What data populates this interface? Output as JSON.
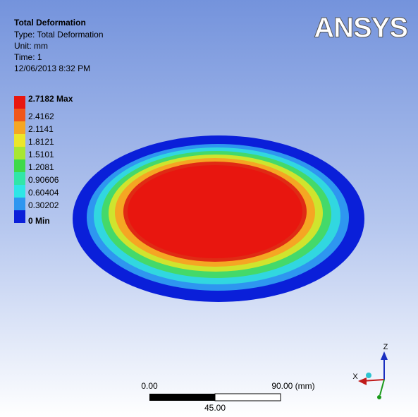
{
  "header": {
    "title": "Total Deformation",
    "lines": [
      "Type: Total Deformation",
      "Unit: mm",
      "Time: 1",
      "12/06/2013 8:32 PM"
    ]
  },
  "logo": "ANSYS",
  "legend": [
    {
      "label": "2.7182 Max",
      "color": "#e8160f"
    },
    {
      "label": "2.4162",
      "color": "#f0561a"
    },
    {
      "label": "2.1141",
      "color": "#f5a623"
    },
    {
      "label": "1.8121",
      "color": "#ece62a"
    },
    {
      "label": "1.5101",
      "color": "#a8e632"
    },
    {
      "label": "1.2081",
      "color": "#3fd94a"
    },
    {
      "label": "0.90606",
      "color": "#31e6a8"
    },
    {
      "label": "0.60404",
      "color": "#2ee6e6"
    },
    {
      "label": "0.30202",
      "color": "#2e96f0"
    },
    {
      "label": "0 Min",
      "color": "#0a1fd9"
    }
  ],
  "scale_bar": {
    "left": "0.00",
    "right": "90.00 (mm)",
    "middle": "45.00"
  },
  "triad": {
    "z": "Z",
    "x": "X"
  }
}
